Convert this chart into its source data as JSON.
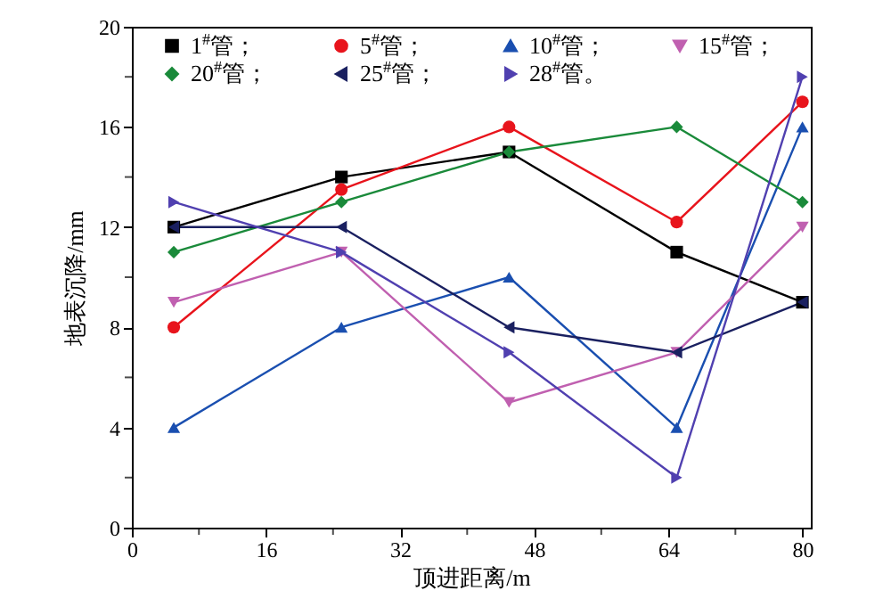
{
  "chart_data": {
    "type": "line",
    "xlabel": "顶进距离/m",
    "ylabel": "地表沉降/mm",
    "x": [
      5,
      25,
      45,
      65,
      80
    ],
    "xlim": [
      0,
      81
    ],
    "xticks": [
      0,
      {
        "value": 8,
        "label": null
      },
      16,
      {
        "value": 24,
        "label": null
      },
      32,
      {
        "value": 40,
        "label": null
      },
      48,
      {
        "value": 56,
        "label": null
      },
      64,
      {
        "value": 72,
        "label": null
      },
      80
    ],
    "ylim": [
      0,
      20
    ],
    "yticks": [
      0,
      {
        "value": 2,
        "label": null
      },
      4,
      {
        "value": 6,
        "label": null
      },
      8,
      {
        "value": 10,
        "label": null
      },
      12,
      {
        "value": 14,
        "label": null
      },
      16,
      {
        "value": 18,
        "label": null
      },
      20
    ],
    "legend": "top",
    "grid": false,
    "series": [
      {
        "name": "1$^{#}$管；",
        "color": "#000000",
        "marker": "square",
        "values": [
          12,
          14,
          15,
          11,
          9
        ]
      },
      {
        "name": "5$^{#}$管；",
        "color": "#e8141c",
        "marker": "circle",
        "values": [
          8,
          13.5,
          16,
          12.2,
          17
        ]
      },
      {
        "name": "10$^{#}$管；",
        "color": "#1a4fb0",
        "marker": "triangle",
        "values": [
          4,
          8,
          10,
          4,
          16
        ]
      },
      {
        "name": "15$^{#}$管；",
        "color": "#c060b0",
        "marker": "triangle-down",
        "values": [
          9,
          11,
          5,
          7,
          12
        ]
      },
      {
        "name": "20$^{#}$管；",
        "color": "#1a8a3a",
        "marker": "diamond",
        "values": [
          11,
          13,
          15,
          16,
          13
        ]
      },
      {
        "name": "25$^{#}$管；",
        "color": "#1a2060",
        "marker": "triangle-left",
        "values": [
          12,
          12,
          8,
          7,
          9
        ]
      },
      {
        "name": "28$^{#}$管。",
        "color": "#5040b0",
        "marker": "triangle-right",
        "values": [
          13,
          11,
          7,
          2,
          18
        ]
      }
    ]
  }
}
